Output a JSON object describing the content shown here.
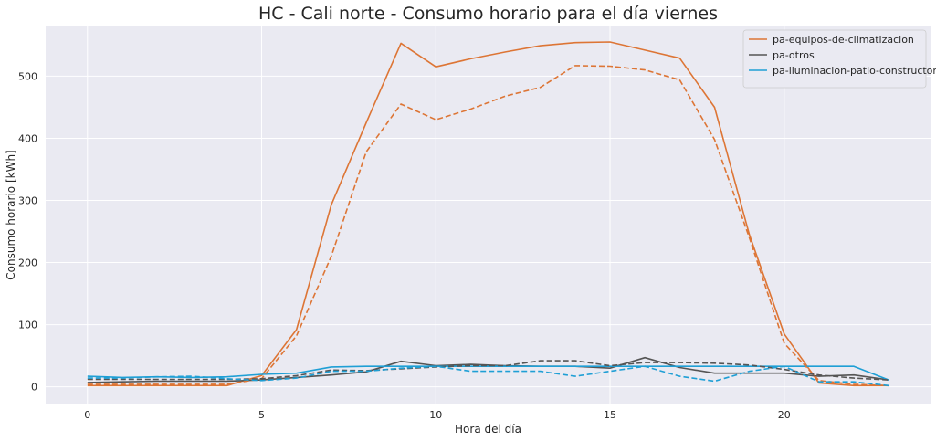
{
  "chart_data": {
    "type": "line",
    "title": "HC - Cali norte - Consumo horario para el día viernes",
    "xlabel": "Hora del día",
    "ylabel": "Consumo horario [kWh]",
    "xlim": [
      -1.2,
      24.2
    ],
    "ylim": [
      -27,
      580
    ],
    "xticks": [
      0,
      5,
      10,
      15,
      20
    ],
    "yticks": [
      0,
      100,
      200,
      300,
      400,
      500
    ],
    "grid": true,
    "background": "#eaeaf2",
    "legend_position": "top-right",
    "x": [
      0,
      1,
      2,
      3,
      4,
      5,
      6,
      7,
      8,
      9,
      10,
      11,
      12,
      13,
      14,
      15,
      16,
      17,
      18,
      19,
      20,
      21,
      22,
      23
    ],
    "series": [
      {
        "name": "pa-equipos-de-climatizacion",
        "color": "#dd7535",
        "style": "solid",
        "in_legend": true,
        "values": [
          2,
          2,
          2,
          2,
          2,
          18,
          92,
          293,
          425,
          553,
          515,
          528,
          539,
          549,
          554,
          555,
          542,
          529,
          450,
          245,
          85,
          6,
          2,
          2
        ]
      },
      {
        "name": "pa-otros",
        "color": "#555555",
        "style": "solid",
        "in_legend": true,
        "values": [
          7,
          8,
          9,
          9,
          9,
          11,
          15,
          19,
          24,
          41,
          34,
          36,
          34,
          33,
          33,
          30,
          47,
          31,
          22,
          22,
          22,
          17,
          19,
          11
        ]
      },
      {
        "name": "pa-iluminacion-patio-constructor",
        "color": "#1f9fd5",
        "style": "solid",
        "in_legend": true,
        "values": [
          17,
          15,
          16,
          15,
          16,
          20,
          22,
          32,
          33,
          33,
          33,
          33,
          33,
          33,
          33,
          33,
          33,
          33,
          33,
          33,
          33,
          33,
          33,
          11
        ]
      },
      {
        "color": "#dd7535",
        "style": "dashed",
        "in_legend": false,
        "values": [
          4,
          4,
          4,
          4,
          4,
          13,
          82,
          210,
          378,
          455,
          430,
          447,
          468,
          482,
          517,
          516,
          510,
          494,
          398,
          240,
          70,
          10,
          4,
          2
        ]
      },
      {
        "color": "#555555",
        "style": "dashed",
        "in_legend": false,
        "values": [
          12,
          12,
          12,
          12,
          12,
          13,
          18,
          27,
          26,
          29,
          32,
          34,
          34,
          42,
          42,
          34,
          39,
          39,
          38,
          35,
          28,
          19,
          14,
          11
        ]
      },
      {
        "color": "#1f9fd5",
        "style": "dashed",
        "in_legend": false,
        "values": [
          14,
          14,
          16,
          17,
          13,
          10,
          14,
          25,
          25,
          30,
          33,
          25,
          25,
          25,
          17,
          25,
          33,
          17,
          9,
          25,
          33,
          8,
          8,
          2
        ]
      }
    ]
  }
}
